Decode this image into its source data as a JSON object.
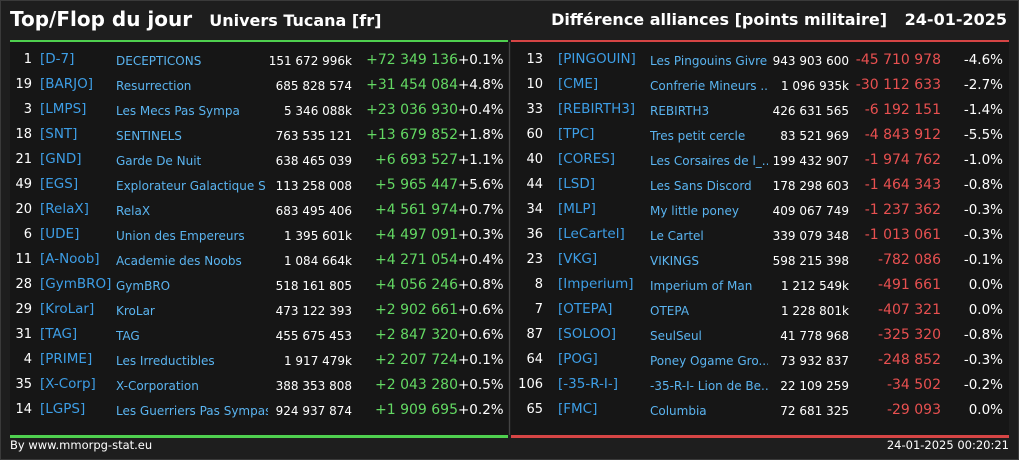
{
  "header": {
    "title": "Top/Flop du jour",
    "universe": "Univers Tucana [fr]",
    "subtitle": "Différence alliances [points militaire]",
    "date": "24-01-2025"
  },
  "colors": {
    "top_accent": "#4fd04f",
    "flop_accent": "#d64545",
    "tag": "#3d9ee6",
    "name": "#5ab4f0"
  },
  "top": [
    {
      "rank": "1",
      "tag": "[D-7]",
      "name": "DECEPTICONS",
      "total": "151 672 996k",
      "diff": "+72 349 136",
      "pct": "+0.1%"
    },
    {
      "rank": "19",
      "tag": "[BARJO]",
      "name": "Resurrection",
      "total": "685 828 574",
      "diff": "+31 454 084",
      "pct": "+4.8%"
    },
    {
      "rank": "3",
      "tag": "[LMPS]",
      "name": "Les Mecs Pas Sympa",
      "total": "5 346 088k",
      "diff": "+23 036 930",
      "pct": "+0.4%"
    },
    {
      "rank": "18",
      "tag": "[SNT]",
      "name": "SENTINELS",
      "total": "763 535 121",
      "diff": "+13 679 852",
      "pct": "+1.8%"
    },
    {
      "rank": "21",
      "tag": "[GND]",
      "name": "Garde De Nuit",
      "total": "638 465 039",
      "diff": "+6 693 527",
      "pct": "+1.1%"
    },
    {
      "rank": "49",
      "tag": "[EGS]",
      "name": "Explorateur Galactique S",
      "total": "113 258 008",
      "diff": "+5 965 447",
      "pct": "+5.6%"
    },
    {
      "rank": "20",
      "tag": "[RelaX]",
      "name": "RelaX",
      "total": "683 495 406",
      "diff": "+4 561 974",
      "pct": "+0.7%"
    },
    {
      "rank": "6",
      "tag": "[UDE]",
      "name": "Union des Empereurs",
      "total": "1 395 601k",
      "diff": "+4 497 091",
      "pct": "+0.3%"
    },
    {
      "rank": "11",
      "tag": "[A-Noob]",
      "name": "Academie des Noobs",
      "total": "1 084 664k",
      "diff": "+4 271 054",
      "pct": "+0.4%"
    },
    {
      "rank": "28",
      "tag": "[GymBRO]",
      "name": "GymBRO",
      "total": "518 161 805",
      "diff": "+4 056 246",
      "pct": "+0.8%"
    },
    {
      "rank": "29",
      "tag": "[KroLar]",
      "name": "KroLar",
      "total": "473 122 393",
      "diff": "+2 902 661",
      "pct": "+0.6%"
    },
    {
      "rank": "31",
      "tag": "[TAG]",
      "name": "TAG",
      "total": "455 675 453",
      "diff": "+2 847 320",
      "pct": "+0.6%"
    },
    {
      "rank": "4",
      "tag": "[PRIME]",
      "name": "Les Irreductibles",
      "total": "1 917 479k",
      "diff": "+2 207 724",
      "pct": "+0.1%"
    },
    {
      "rank": "35",
      "tag": "[X-Corp]",
      "name": "X-Corporation",
      "total": "388 353 808",
      "diff": "+2 043 280",
      "pct": "+0.5%"
    },
    {
      "rank": "14",
      "tag": "[LGPS]",
      "name": "Les Guerriers Pas Sympas",
      "total": "924 937 874",
      "diff": "+1 909 695",
      "pct": "+0.2%"
    }
  ],
  "flop": [
    {
      "rank": "13",
      "tag": "[PINGOUIN]",
      "name": "Les Pingouins Givre...",
      "total": "943 903 600",
      "diff": "-45 710 978",
      "pct": "-4.6%"
    },
    {
      "rank": "10",
      "tag": "[CME]",
      "name": "Confrerie Mineurs ...",
      "total": "1 096 935k",
      "diff": "-30 112 633",
      "pct": "-2.7%"
    },
    {
      "rank": "33",
      "tag": "[REBIRTH3]",
      "name": "REBIRTH3",
      "total": "426 631 565",
      "diff": "-6 192 151",
      "pct": "-1.4%"
    },
    {
      "rank": "60",
      "tag": "[TPC]",
      "name": "Tres petit cercle",
      "total": "83 521 969",
      "diff": "-4 843 912",
      "pct": "-5.5%"
    },
    {
      "rank": "40",
      "tag": "[CORES]",
      "name": "Les Corsaires de l_...",
      "total": "199 432 907",
      "diff": "-1 974 762",
      "pct": "-1.0%"
    },
    {
      "rank": "44",
      "tag": "[LSD]",
      "name": "Les Sans Discord",
      "total": "178 298 603",
      "diff": "-1 464 343",
      "pct": "-0.8%"
    },
    {
      "rank": "34",
      "tag": "[MLP]",
      "name": "My little poney",
      "total": "409 067 749",
      "diff": "-1 237 362",
      "pct": "-0.3%"
    },
    {
      "rank": "36",
      "tag": "[LeCartel]",
      "name": "Le Cartel",
      "total": "339 079 348",
      "diff": "-1 013 061",
      "pct": "-0.3%"
    },
    {
      "rank": "23",
      "tag": "[VKG]",
      "name": "VIKINGS",
      "total": "598 215 398",
      "diff": "-782 086",
      "pct": "-0.1%"
    },
    {
      "rank": "8",
      "tag": "[Imperium]",
      "name": "Imperium of Man",
      "total": "1 212 549k",
      "diff": "-491 661",
      "pct": "0.0%"
    },
    {
      "rank": "7",
      "tag": "[OTEPA]",
      "name": "OTEPA",
      "total": "1 228 801k",
      "diff": "-407 321",
      "pct": "0.0%"
    },
    {
      "rank": "87",
      "tag": "[SOLOO]",
      "name": "SeulSeul",
      "total": "41 778 968",
      "diff": "-325 320",
      "pct": "-0.8%"
    },
    {
      "rank": "64",
      "tag": "[POG]",
      "name": "Poney Ogame Gro...",
      "total": "73 932 837",
      "diff": "-248 852",
      "pct": "-0.3%"
    },
    {
      "rank": "106",
      "tag": "[-35-R-I-]",
      "name": "-35-R-I- Lion de Be...",
      "total": "22 109 259",
      "diff": "-34 502",
      "pct": "-0.2%"
    },
    {
      "rank": "65",
      "tag": "[FMC]",
      "name": "Columbia",
      "total": "72 681 325",
      "diff": "-29 093",
      "pct": "0.0%"
    }
  ],
  "footer": {
    "credit": "By www.mmorpg-stat.eu",
    "timestamp": "24-01-2025 00:20:21"
  }
}
